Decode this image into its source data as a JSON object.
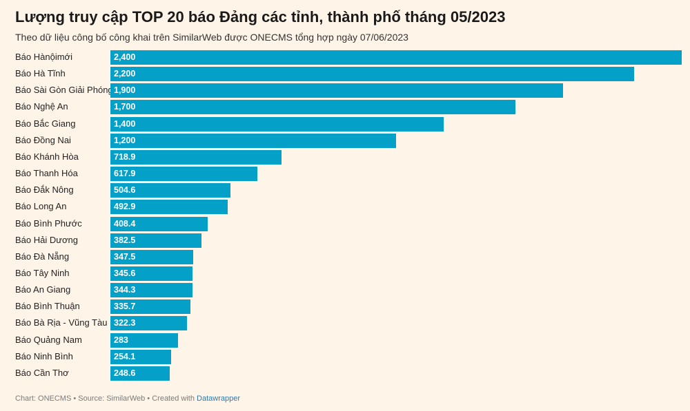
{
  "header": {
    "title": "Lượng truy cập TOP 20 báo Đảng các tỉnh, thành phố tháng 05/2023",
    "subtitle": "Theo dữ liệu công bố công khai trên SimilarWeb được ONECMS tổng hợp ngày 07/06/2023"
  },
  "footer": {
    "credit": "Chart: ONECMS • Source: SimilarWeb • Created with ",
    "link": "Datawrapper"
  },
  "chart_data": {
    "type": "bar",
    "orientation": "horizontal",
    "title": "Lượng truy cập TOP 20 báo Đảng các tỉnh, thành phố tháng 05/2023",
    "subtitle": "Theo dữ liệu công bố công khai trên SimilarWeb được ONECMS tổng hợp ngày 07/06/2023",
    "xlim": [
      0,
      2400
    ],
    "grid": false,
    "color": "#05a0c8",
    "categories": [
      "Báo Hànộimới",
      "Báo Hà Tĩnh",
      "Báo Sài Gòn Giải Phóng",
      "Báo Nghệ An",
      "Báo Bắc Giang",
      "Báo Đồng Nai",
      "Báo Khánh Hòa",
      "Báo Thanh Hóa",
      "Báo Đắk Nông",
      "Báo Long An",
      "Báo Bình Phước",
      "Báo Hải Dương",
      "Báo Đà Nẵng",
      "Báo Tây Ninh",
      "Báo An Giang",
      "Báo Bình Thuận",
      "Báo Bà Rịa - Vũng Tàu",
      "Báo Quảng Nam",
      "Báo Ninh Bình",
      "Báo Cần Thơ"
    ],
    "values": [
      2400,
      2200,
      1900,
      1700,
      1400,
      1200,
      718.9,
      617.9,
      504.6,
      492.9,
      408.4,
      382.5,
      347.5,
      345.6,
      344.3,
      335.7,
      322.3,
      283,
      254.1,
      248.6
    ],
    "value_labels": [
      "2,400",
      "2,200",
      "1,900",
      "1,700",
      "1,400",
      "1,200",
      "718.9",
      "617.9",
      "504.6",
      "492.9",
      "408.4",
      "382.5",
      "347.5",
      "345.6",
      "344.3",
      "335.7",
      "322.3",
      "283",
      "254.1",
      "248.6"
    ]
  }
}
